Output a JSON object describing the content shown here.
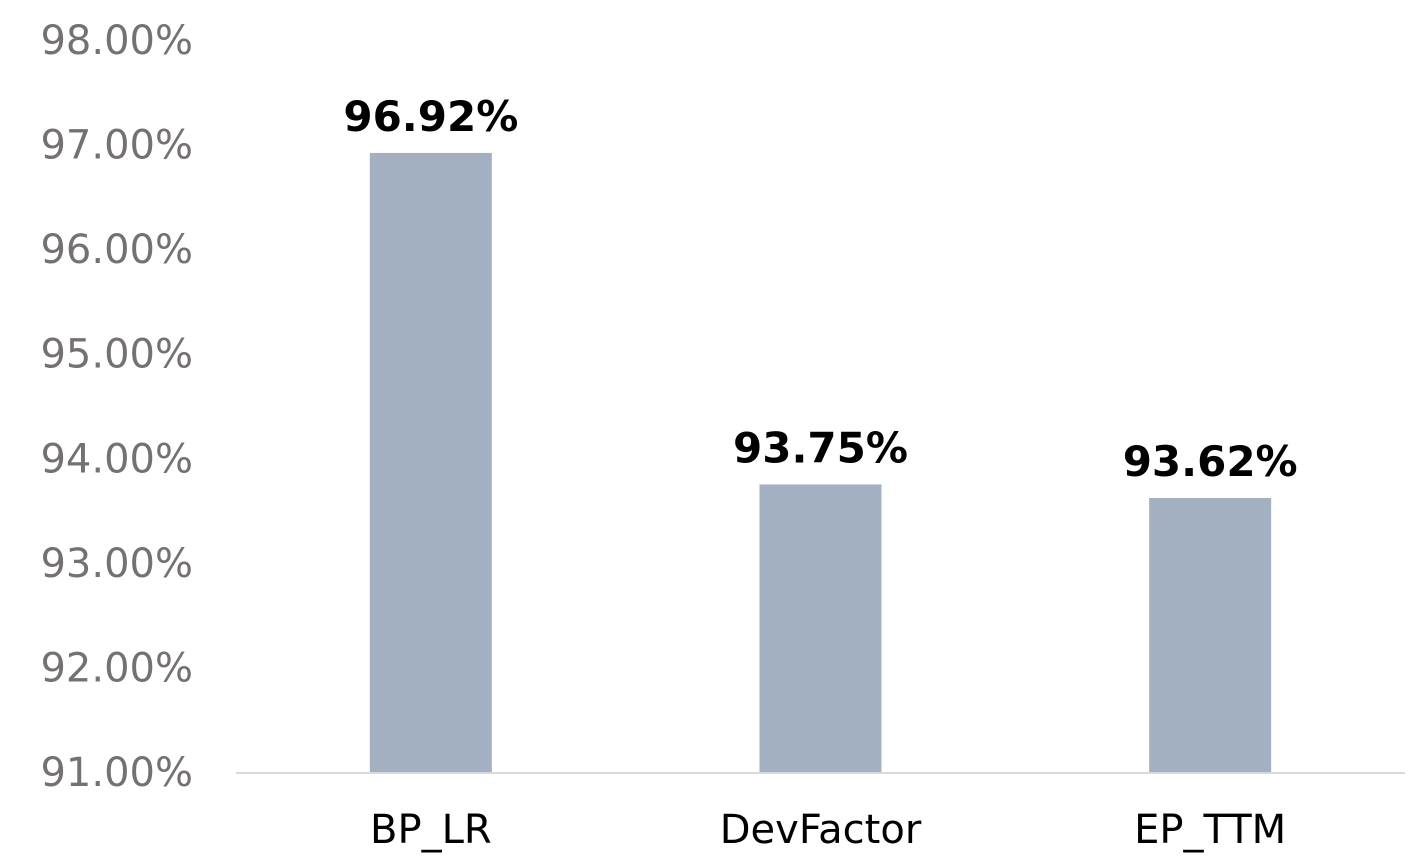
{
  "chart_data": {
    "type": "bar",
    "categories": [
      "BP_LR",
      "DevFactor",
      "EP_TTM"
    ],
    "values": [
      96.92,
      93.75,
      93.62
    ],
    "data_labels": [
      "96.92%",
      "93.75%",
      "93.62%"
    ],
    "y_ticks": [
      91,
      92,
      93,
      94,
      95,
      96,
      97,
      98
    ],
    "y_tick_labels": [
      "91.00%",
      "92.00%",
      "93.00%",
      "94.00%",
      "95.00%",
      "96.00%",
      "97.00%",
      "98.00%"
    ],
    "ylim": [
      91,
      98
    ],
    "title": "",
    "xlabel": "",
    "ylabel": "",
    "grid": false,
    "legend": "none",
    "colors": {
      "bar": "#a2b0c1",
      "axis_line": "#d9d9d9",
      "tick_label": "#767171",
      "category_label": "#000000",
      "data_label": "#000000"
    }
  }
}
